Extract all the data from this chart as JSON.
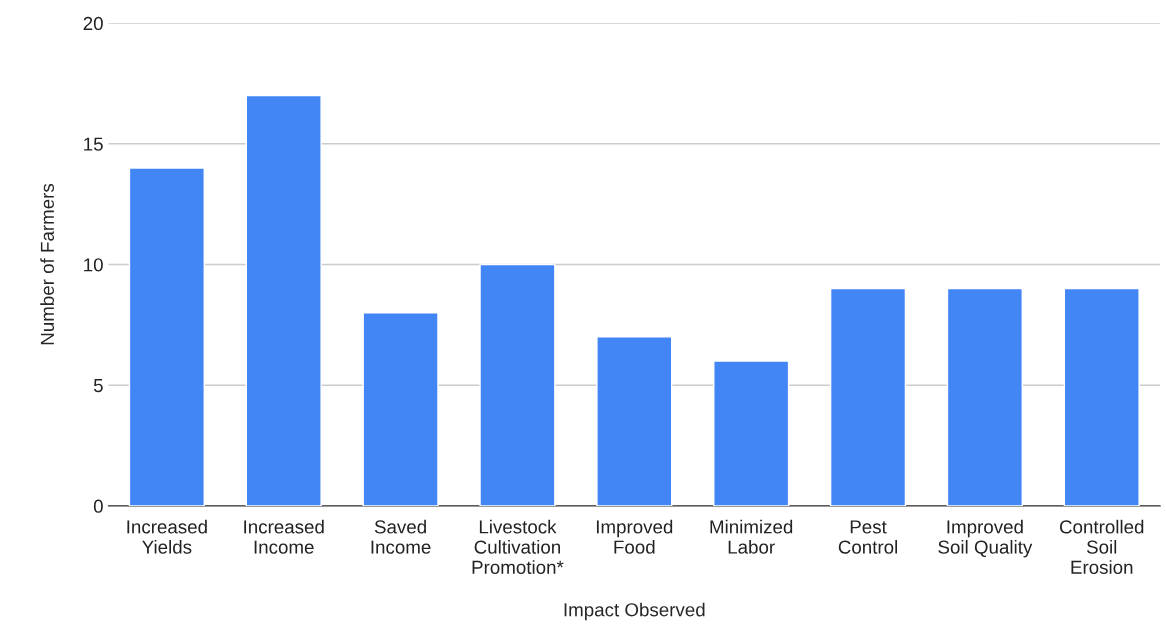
{
  "chart_data": {
    "type": "bar",
    "xlabel": "Impact Observed",
    "ylabel": "Number of Farmers",
    "categories": [
      "Increased\nYields",
      "Increased\nIncome",
      "Saved\nIncome",
      "Livestock\nCultivation\nPromotion*",
      "Improved\nFood",
      "Minimized\nLabor",
      "Pest\nControl",
      "Improved\nSoil Quality",
      "Controlled\nSoil\nErosion"
    ],
    "values": [
      14,
      17,
      8,
      10,
      7,
      6,
      9,
      9,
      9
    ],
    "color": "#4285f4",
    "ylim": [
      0,
      20
    ],
    "yticks": [
      0,
      5,
      10,
      15,
      20
    ],
    "grid": "y"
  }
}
